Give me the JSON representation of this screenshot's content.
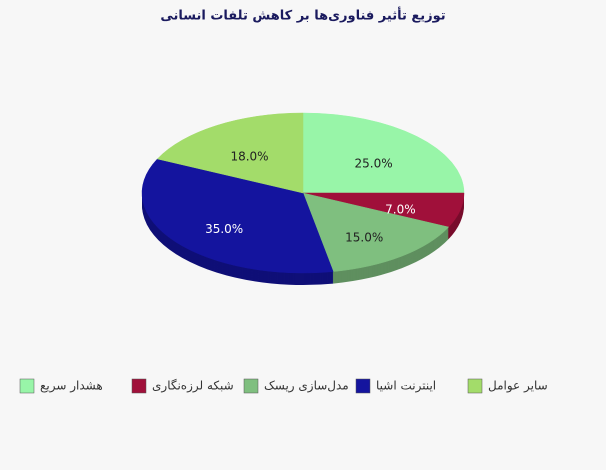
{
  "chart_data": {
    "type": "pie",
    "title": "توزیع تأثیر فناوری‌ها بر کاهش تلفات انسانی",
    "categories": [
      "هشدار سریع",
      "شبکه لرزه‌نگاری",
      "مدل‌سازی ریسک",
      "اینترنت اشیا",
      "سایر عوامل"
    ],
    "values": [
      25,
      7,
      15,
      35,
      18
    ],
    "value_labels": [
      "25.0%",
      "7.0%",
      "15.0%",
      "35.0%",
      "18.0%"
    ],
    "colors": [
      "#98f5a8",
      "#a0103a",
      "#7fbf7f",
      "#14149e",
      "#a3dc6a"
    ],
    "legend": "bottom"
  }
}
